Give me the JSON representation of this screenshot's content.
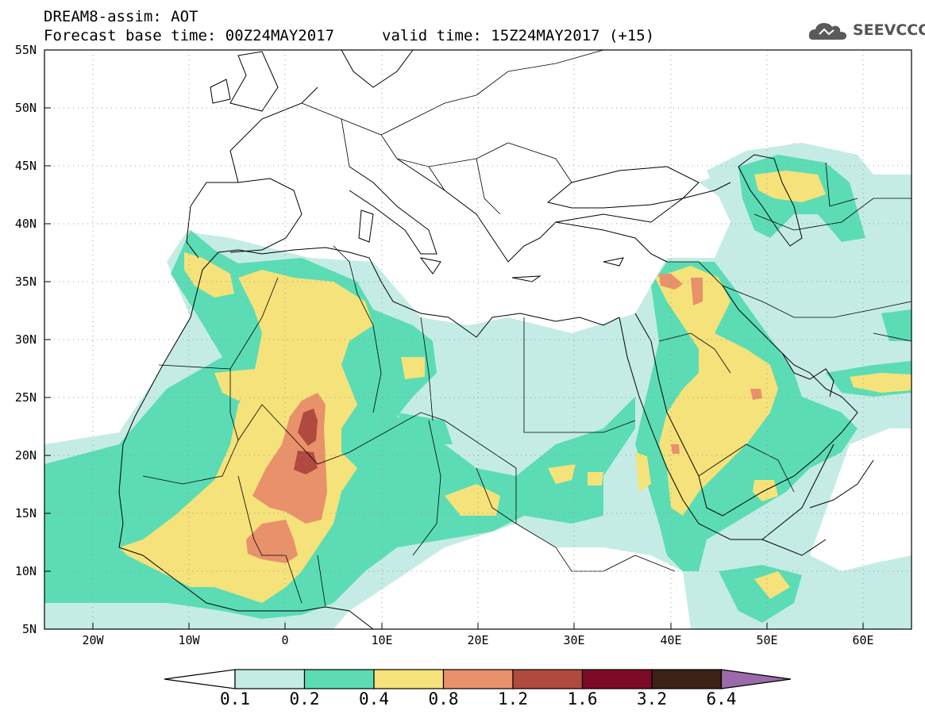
{
  "header": {
    "title_line1": "DREAM8-assim: AOT",
    "title_line2": "Forecast base time: 00Z24MAY2017",
    "valid_time": "valid time: 15Z24MAY2017 (+15)",
    "logo_text": "SEEVCCC",
    "logo_icon": "cloud-icon"
  },
  "map": {
    "lon_range": [
      -25,
      65
    ],
    "lat_range": [
      5,
      55
    ],
    "lat_labels": [
      "55N",
      "50N",
      "45N",
      "40N",
      "35N",
      "30N",
      "25N",
      "20N",
      "15N",
      "10N",
      "5N"
    ],
    "lon_labels": [
      "20W",
      "10W",
      "0",
      "10E",
      "20E",
      "30E",
      "40E",
      "50E",
      "60E"
    ],
    "grid": "dotted"
  },
  "colorbar": {
    "labels": [
      "0.1",
      "0.2",
      "0.4",
      "0.8",
      "1.2",
      "1.6",
      "3.2",
      "6.4"
    ],
    "colors": [
      "#ffffff",
      "#c4ece4",
      "#5bdcb4",
      "#f5e27a",
      "#e8916a",
      "#b04a3e",
      "#7d0a26",
      "#3a2214",
      "#9a6aaa"
    ]
  },
  "colors": {
    "level_0.1": "#c4ece4",
    "level_0.2": "#5bdcb4",
    "level_0.4": "#f5e27a",
    "level_0.8": "#e8916a",
    "level_1.2": "#b04a3e"
  }
}
